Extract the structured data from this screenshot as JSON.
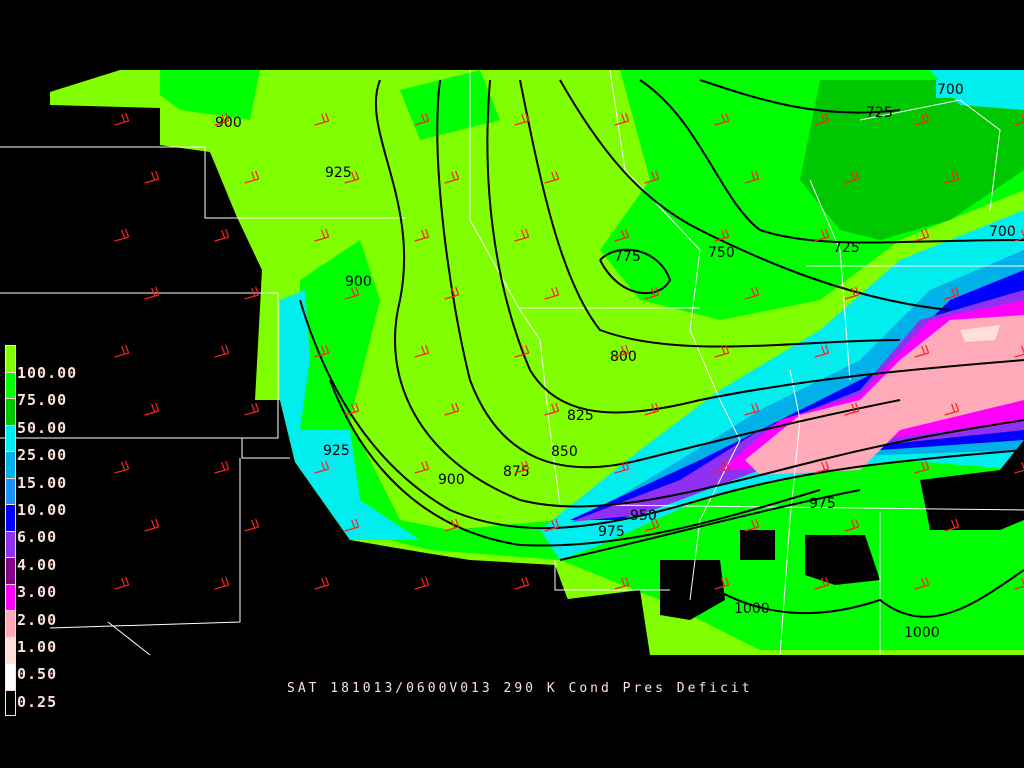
{
  "caption": "SAT 181013/0600V013 290 K Cond Pres Deficit",
  "legend": {
    "colors": [
      "#80ff00",
      "#00ff00",
      "#00c800",
      "#00eeee",
      "#00b0e8",
      "#1e90ff",
      "#0000ff",
      "#9030f0",
      "#880088",
      "#ff00ff",
      "#ffaab8",
      "#ffe0d8",
      "#ffffff",
      "#000000"
    ],
    "labels": [
      "100.00",
      "75.00",
      "50.00",
      "25.00",
      "15.00",
      "10.00",
      "6.00",
      "4.00",
      "3.00",
      "2.00",
      "1.00",
      "0.50",
      "0.25"
    ]
  },
  "contour_labels": [
    "700",
    "725",
    "900",
    "925",
    "775",
    "750",
    "725",
    "700",
    "900",
    "800",
    "825",
    "850",
    "925",
    "875",
    "900",
    "950",
    "975",
    "975",
    "1000",
    "1000"
  ]
}
